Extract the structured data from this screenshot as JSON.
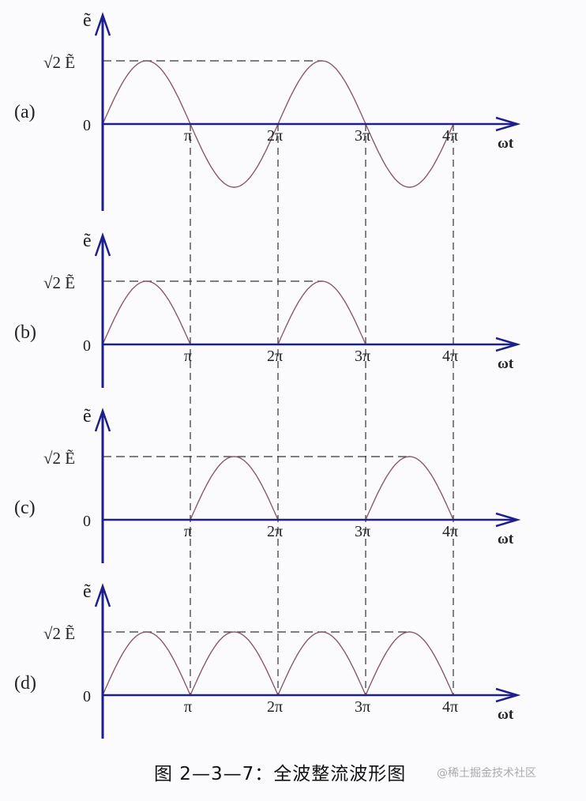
{
  "colors": {
    "axis": "#1e1e8c",
    "curve": "#8a5a68",
    "dash": "#333333"
  },
  "y_label": "ẽ",
  "peak_label": "√2 Ẽ",
  "zero_label": "0",
  "x_label": "ωt",
  "tick_labels": [
    "π",
    "2π",
    "3π",
    "4π"
  ],
  "panels": [
    {
      "label": "(a)",
      "waveform": "sine",
      "description_key": "full sine"
    },
    {
      "label": "(b)",
      "waveform": "half-wave positive"
    },
    {
      "label": "(c)",
      "waveform": "half-wave negative rectified"
    },
    {
      "label": "(d)",
      "waveform": "full-wave rectified"
    }
  ],
  "caption": "图 2—3—7：全波整流波形图",
  "watermark": "@稀土掘金技术社区"
}
